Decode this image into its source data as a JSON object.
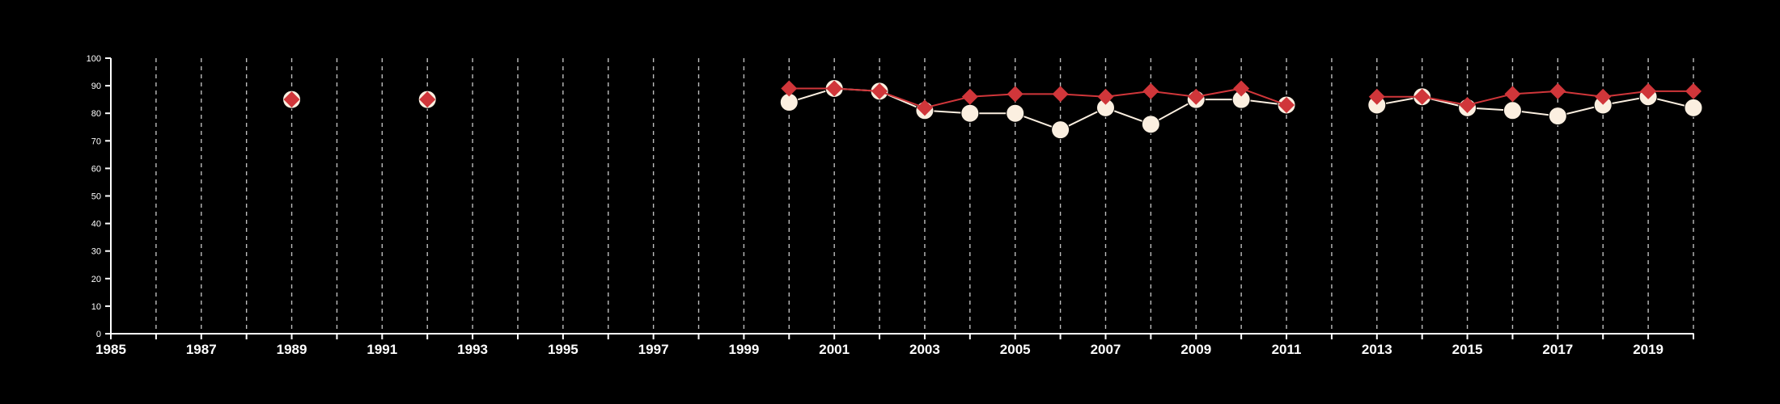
{
  "chart_data": {
    "type": "line",
    "title": "",
    "xlabel": "",
    "ylabel": "",
    "xlim": [
      1985,
      2020
    ],
    "ylim": [
      0,
      100
    ],
    "x_ticks": [
      "1985",
      "1987",
      "1989",
      "1991",
      "1993",
      "1995",
      "1997",
      "1999",
      "2001",
      "2003",
      "2005",
      "2007",
      "2009",
      "2011",
      "2013",
      "2015",
      "2017",
      "2019"
    ],
    "y_ticks": [
      "0",
      "10",
      "20",
      "30",
      "40",
      "50",
      "60",
      "70",
      "80",
      "90",
      "100"
    ],
    "grid": "vertical dashed lines at every year",
    "legend": "none",
    "series": [
      {
        "marker": "circle",
        "color": "#fbefe0",
        "points": [
          {
            "x": 1989,
            "y": 85
          },
          {
            "x": 1992,
            "y": 85
          },
          {
            "x": 2000,
            "y": 84
          },
          {
            "x": 2001,
            "y": 89
          },
          {
            "x": 2002,
            "y": 88
          },
          {
            "x": 2003,
            "y": 81
          },
          {
            "x": 2004,
            "y": 80
          },
          {
            "x": 2005,
            "y": 80
          },
          {
            "x": 2006,
            "y": 74
          },
          {
            "x": 2007,
            "y": 82
          },
          {
            "x": 2008,
            "y": 76
          },
          {
            "x": 2009,
            "y": 85
          },
          {
            "x": 2010,
            "y": 85
          },
          {
            "x": 2011,
            "y": 83
          },
          {
            "x": 2013,
            "y": 83
          },
          {
            "x": 2014,
            "y": 86
          },
          {
            "x": 2015,
            "y": 82
          },
          {
            "x": 2016,
            "y": 81
          },
          {
            "x": 2017,
            "y": 79
          },
          {
            "x": 2018,
            "y": 83
          },
          {
            "x": 2019,
            "y": 86
          },
          {
            "x": 2020,
            "y": 82
          }
        ]
      },
      {
        "marker": "diamond",
        "color": "#d0363a",
        "points": [
          {
            "x": 1989,
            "y": 85
          },
          {
            "x": 1992,
            "y": 85
          },
          {
            "x": 2000,
            "y": 89
          },
          {
            "x": 2001,
            "y": 89
          },
          {
            "x": 2002,
            "y": 88
          },
          {
            "x": 2003,
            "y": 82
          },
          {
            "x": 2004,
            "y": 86
          },
          {
            "x": 2005,
            "y": 87
          },
          {
            "x": 2006,
            "y": 87
          },
          {
            "x": 2007,
            "y": 86
          },
          {
            "x": 2008,
            "y": 88
          },
          {
            "x": 2009,
            "y": 86
          },
          {
            "x": 2010,
            "y": 89
          },
          {
            "x": 2011,
            "y": 83
          },
          {
            "x": 2013,
            "y": 86
          },
          {
            "x": 2014,
            "y": 86
          },
          {
            "x": 2015,
            "y": 83
          },
          {
            "x": 2016,
            "y": 87
          },
          {
            "x": 2017,
            "y": 88
          },
          {
            "x": 2018,
            "y": 86
          },
          {
            "x": 2019,
            "y": 88
          },
          {
            "x": 2020,
            "y": 88
          }
        ]
      }
    ]
  }
}
